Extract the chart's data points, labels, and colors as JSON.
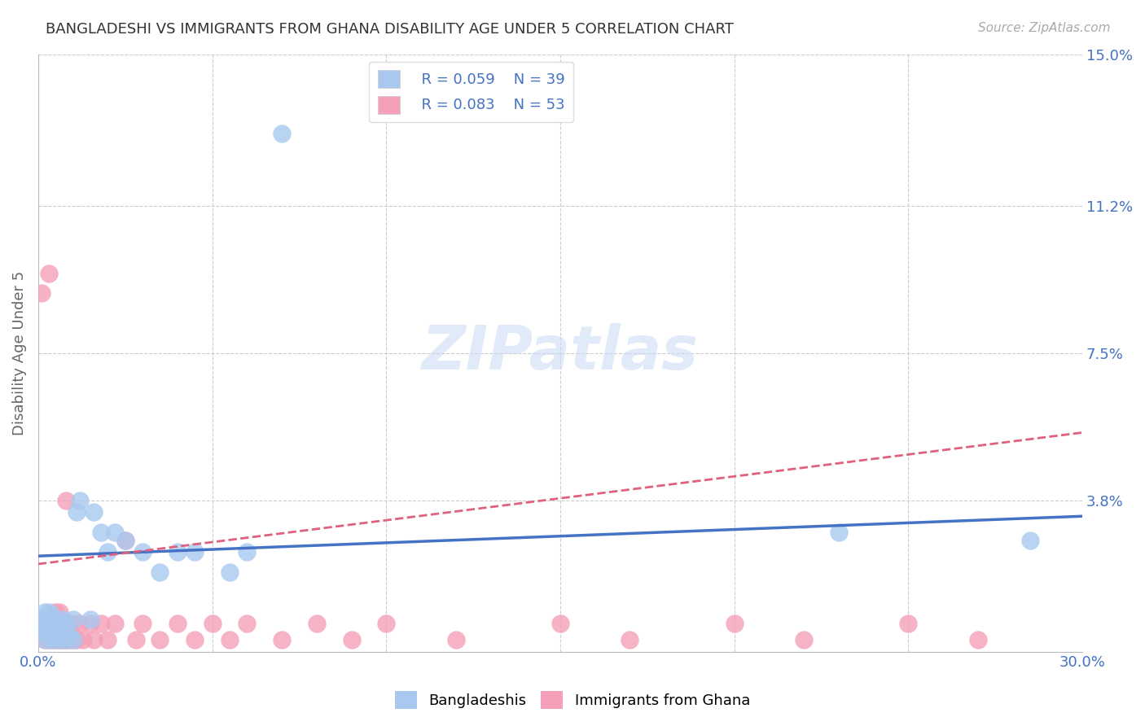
{
  "title": "BANGLADESHI VS IMMIGRANTS FROM GHANA DISABILITY AGE UNDER 5 CORRELATION CHART",
  "source": "Source: ZipAtlas.com",
  "ylabel": "Disability Age Under 5",
  "xlim": [
    0.0,
    0.3
  ],
  "ylim": [
    0.0,
    0.15
  ],
  "ytick_labels_right": [
    "15.0%",
    "11.2%",
    "7.5%",
    "3.8%",
    ""
  ],
  "ytick_positions_right": [
    0.15,
    0.112,
    0.075,
    0.038,
    0.0
  ],
  "background_color": "#ffffff",
  "grid_color": "#cccccc",
  "watermark": "ZIPatlas",
  "legend_r1": "R = 0.059",
  "legend_n1": "N = 39",
  "legend_r2": "R = 0.083",
  "legend_n2": "N = 53",
  "blue_color": "#A8C8F0",
  "pink_color": "#F5A0B8",
  "blue_line_color": "#4472C4",
  "pink_line_color": "#E06080",
  "title_color": "#333333",
  "axis_label_color": "#666666",
  "tick_color_blue": "#4472C4",
  "bangladeshis_x": [
    0.001,
    0.001,
    0.002,
    0.002,
    0.002,
    0.003,
    0.003,
    0.003,
    0.004,
    0.004,
    0.004,
    0.005,
    0.005,
    0.006,
    0.006,
    0.007,
    0.007,
    0.008,
    0.008,
    0.009,
    0.01,
    0.01,
    0.011,
    0.012,
    0.015,
    0.016,
    0.018,
    0.02,
    0.022,
    0.025,
    0.03,
    0.035,
    0.04,
    0.045,
    0.055,
    0.06,
    0.07,
    0.23,
    0.285
  ],
  "bangladeshis_y": [
    0.005,
    0.008,
    0.003,
    0.006,
    0.01,
    0.004,
    0.007,
    0.01,
    0.003,
    0.006,
    0.009,
    0.004,
    0.008,
    0.003,
    0.007,
    0.004,
    0.008,
    0.003,
    0.007,
    0.004,
    0.003,
    0.008,
    0.035,
    0.038,
    0.008,
    0.035,
    0.03,
    0.025,
    0.03,
    0.028,
    0.025,
    0.02,
    0.025,
    0.025,
    0.02,
    0.025,
    0.13,
    0.03,
    0.028
  ],
  "ghana_x": [
    0.001,
    0.001,
    0.002,
    0.002,
    0.003,
    0.003,
    0.003,
    0.004,
    0.004,
    0.004,
    0.005,
    0.005,
    0.005,
    0.006,
    0.006,
    0.006,
    0.007,
    0.007,
    0.008,
    0.008,
    0.008,
    0.009,
    0.009,
    0.01,
    0.01,
    0.011,
    0.012,
    0.013,
    0.015,
    0.016,
    0.018,
    0.02,
    0.022,
    0.025,
    0.028,
    0.03,
    0.035,
    0.04,
    0.045,
    0.05,
    0.055,
    0.06,
    0.07,
    0.08,
    0.09,
    0.1,
    0.12,
    0.15,
    0.17,
    0.2,
    0.22,
    0.25,
    0.27
  ],
  "ghana_y": [
    0.005,
    0.09,
    0.003,
    0.008,
    0.003,
    0.006,
    0.095,
    0.003,
    0.006,
    0.009,
    0.003,
    0.006,
    0.01,
    0.003,
    0.006,
    0.01,
    0.003,
    0.007,
    0.003,
    0.006,
    0.038,
    0.003,
    0.007,
    0.003,
    0.007,
    0.003,
    0.007,
    0.003,
    0.007,
    0.003,
    0.007,
    0.003,
    0.007,
    0.028,
    0.003,
    0.007,
    0.003,
    0.007,
    0.003,
    0.007,
    0.003,
    0.007,
    0.003,
    0.007,
    0.003,
    0.007,
    0.003,
    0.007,
    0.003,
    0.007,
    0.003,
    0.007,
    0.003
  ],
  "blue_line_x": [
    0.0,
    0.3
  ],
  "blue_line_y": [
    0.024,
    0.034
  ],
  "pink_line_x": [
    0.0,
    0.3
  ],
  "pink_line_y": [
    0.022,
    0.055
  ]
}
